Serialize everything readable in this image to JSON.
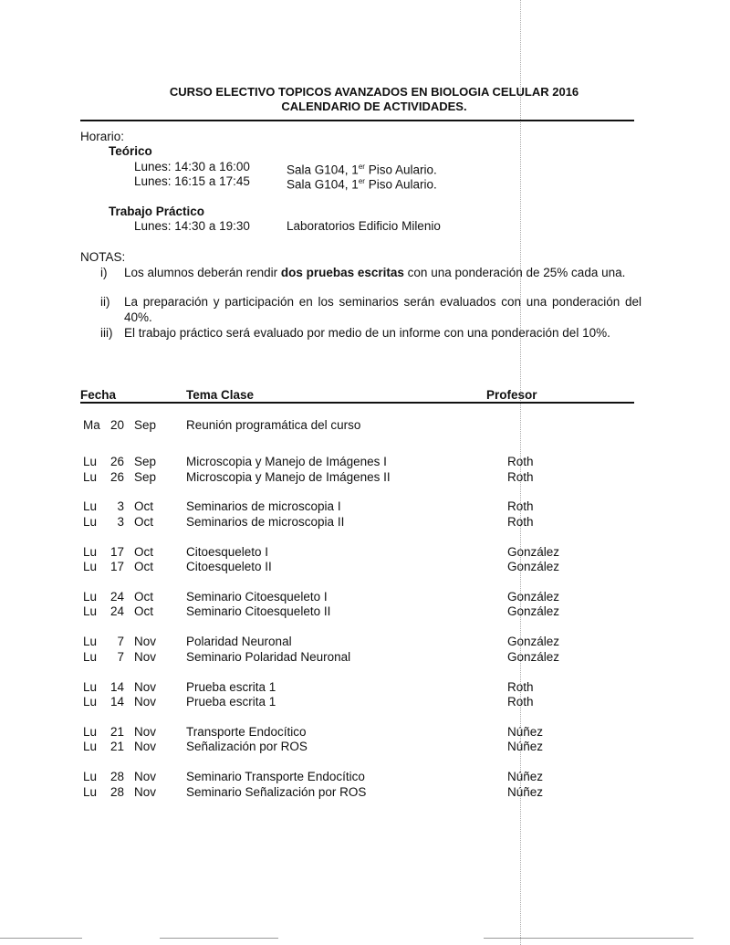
{
  "title": {
    "line1": "CURSO ELECTIVO TOPICOS AVANZADOS EN BIOLOGIA CELULAR 2016",
    "line2": "CALENDARIO DE ACTIVIDADES."
  },
  "horario": {
    "label": "Horario:",
    "teorico": {
      "label": "Teórico",
      "rows": [
        {
          "time": "Lunes: 14:30 a 16:00",
          "place": "Sala G104, 1",
          "sup": "er",
          "place_rest": " Piso Aulario."
        },
        {
          "time": "Lunes: 16:15 a 17:45",
          "place": "Sala G104, 1",
          "sup": "er",
          "place_rest": " Piso Aulario."
        }
      ]
    },
    "practico": {
      "label": "Trabajo Práctico",
      "time": "Lunes: 14:30 a 19:30",
      "place": "Laboratorios Edificio Milenio"
    }
  },
  "notas": {
    "label": "NOTAS:",
    "items": [
      {
        "num": "i)",
        "pre": "Los alumnos deberán rendir ",
        "bold": "dos pruebas escritas",
        "post": " con una ponderación de 25% cada una."
      },
      {
        "num": "ii)",
        "pre": "La preparación y participación en los seminarios serán evaluados con una ponderación del 40%.",
        "bold": "",
        "post": ""
      },
      {
        "num": "iii)",
        "pre": "El trabajo práctico será evaluado por medio de un informe con una ponderación del 10%.",
        "bold": "",
        "post": ""
      }
    ]
  },
  "table": {
    "headers": {
      "fecha": "Fecha",
      "tema": "Tema Clase",
      "profesor": "Profesor"
    },
    "groups": [
      [
        {
          "day": "Ma",
          "num": "20",
          "month": "Sep",
          "tema": "Reunión programática del curso",
          "profesor": ""
        }
      ],
      [
        {
          "day": "Lu",
          "num": "26",
          "month": "Sep",
          "tema": "Microscopia y Manejo de Imágenes I",
          "profesor": "Roth"
        },
        {
          "day": "Lu",
          "num": "26",
          "month": "Sep",
          "tema": "Microscopia y Manejo de Imágenes II",
          "profesor": "Roth"
        }
      ],
      [
        {
          "day": "Lu",
          "num": "3",
          "month": "Oct",
          "tema": "Seminarios de microscopia I",
          "profesor": "Roth"
        },
        {
          "day": "Lu",
          "num": "3",
          "month": "Oct",
          "tema": "Seminarios de microscopia II",
          "profesor": "Roth"
        }
      ],
      [
        {
          "day": "Lu",
          "num": "17",
          "month": "Oct",
          "tema": "Citoesqueleto I",
          "profesor": "González"
        },
        {
          "day": "Lu",
          "num": "17",
          "month": "Oct",
          "tema": "Citoesqueleto II",
          "profesor": "González"
        }
      ],
      [
        {
          "day": "Lu",
          "num": "24",
          "month": "Oct",
          "tema": "Seminario Citoesqueleto I",
          "profesor": "González"
        },
        {
          "day": "Lu",
          "num": "24",
          "month": "Oct",
          "tema": "Seminario Citoesqueleto II",
          "profesor": "González"
        }
      ],
      [
        {
          "day": "Lu",
          "num": "7",
          "month": "Nov",
          "tema": "Polaridad Neuronal",
          "profesor": "González"
        },
        {
          "day": "Lu",
          "num": "7",
          "month": "Nov",
          "tema": "Seminario Polaridad Neuronal",
          "profesor": "González"
        }
      ],
      [
        {
          "day": "Lu",
          "num": "14",
          "month": "Nov",
          "tema": "Prueba escrita 1",
          "profesor": "Roth"
        },
        {
          "day": "Lu",
          "num": "14",
          "month": "Nov",
          "tema": "Prueba escrita 1",
          "profesor": "Roth"
        }
      ],
      [
        {
          "day": "Lu",
          "num": "21",
          "month": "Nov",
          "tema": "Transporte Endocítico",
          "profesor": "Núñez"
        },
        {
          "day": "Lu",
          "num": "21",
          "month": "Nov",
          "tema": "Señalización por ROS",
          "profesor": "Núñez"
        }
      ],
      [
        {
          "day": "Lu",
          "num": "28",
          "month": "Nov",
          "tema": "Seminario Transporte Endocítico",
          "profesor": "Núñez"
        },
        {
          "day": "Lu",
          "num": "28",
          "month": "Nov",
          "tema": "Seminario Señalización por ROS",
          "profesor": "Núñez"
        }
      ]
    ]
  }
}
